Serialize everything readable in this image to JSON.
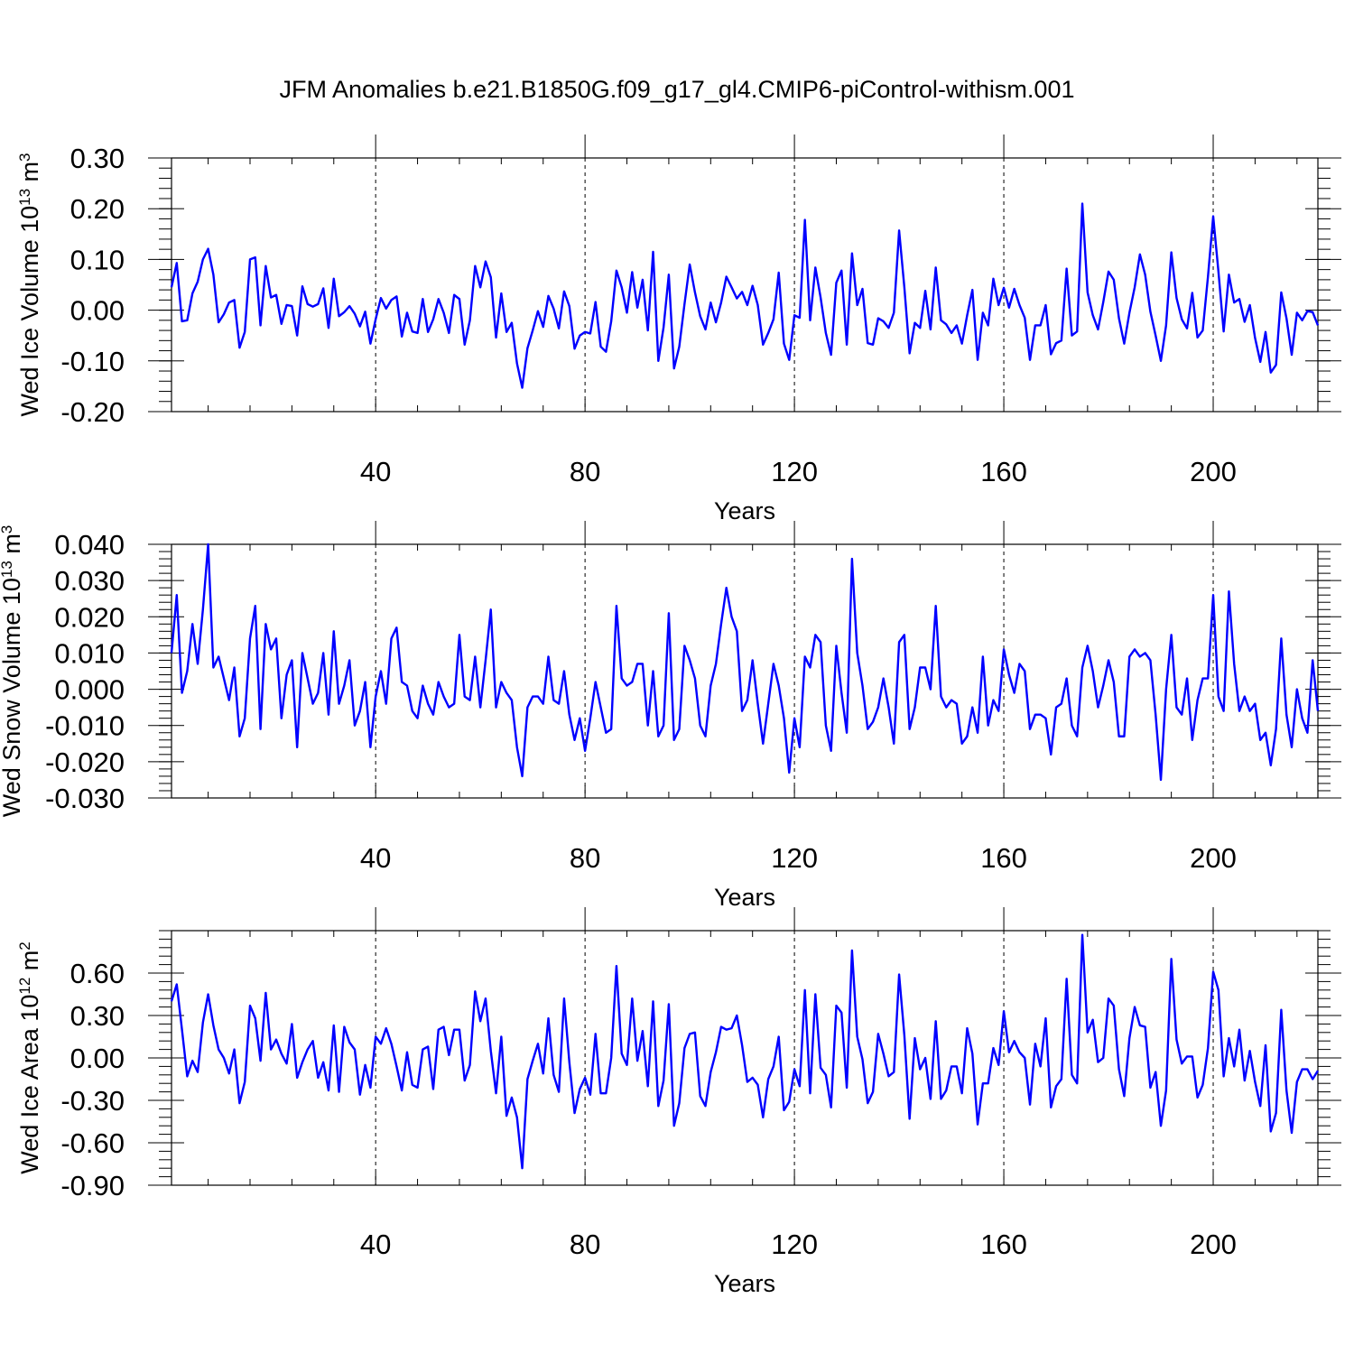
{
  "figure": {
    "title": "JFM Anomalies b.e21.B1850G.f09_g17_gl4.CMIP6-piControl-withism.001",
    "line_color": "#0000ff"
  },
  "chart_data": [
    {
      "type": "line",
      "xlabel": "Years",
      "ylabel": "Wed Ice Volume 10",
      "ylabel_sup": "13",
      "ylabel_unit": " m",
      "ylabel_unit_sup": "3",
      "xlim": [
        1,
        220
      ],
      "ylim": [
        -0.2,
        0.3
      ],
      "x_ticks": [
        40,
        80,
        120,
        160,
        200
      ],
      "x_tick_labels": [
        "40",
        "80",
        "120",
        "160",
        "200"
      ],
      "y_ticks": [
        -0.2,
        -0.1,
        0.0,
        0.1,
        0.2,
        0.3
      ],
      "y_tick_labels": [
        "-0.20",
        "-0.10",
        "0.00",
        "0.10",
        "0.20",
        "0.30"
      ],
      "y_minor_step": 0.02,
      "x_minor_step": 8,
      "vertical_gridlines": "dashed at major x ticks",
      "series": [
        {
          "x_start": 1,
          "values": [
            0.045,
            0.093,
            -0.022,
            -0.02,
            0.033,
            0.056,
            0.1,
            0.121,
            0.07,
            -0.024,
            -0.008,
            0.015,
            0.02,
            -0.074,
            -0.043,
            0.1,
            0.104,
            -0.03,
            0.087,
            0.025,
            0.03,
            -0.027,
            0.01,
            0.008,
            -0.05,
            0.047,
            0.012,
            0.007,
            0.012,
            0.043,
            -0.035,
            0.062,
            -0.012,
            -0.004,
            0.008,
            -0.007,
            -0.032,
            -0.003,
            -0.066,
            -0.018,
            0.024,
            0.003,
            0.02,
            0.027,
            -0.052,
            -0.005,
            -0.042,
            -0.045,
            0.022,
            -0.043,
            -0.018,
            0.022,
            -0.005,
            -0.045,
            0.03,
            0.022,
            -0.068,
            -0.02,
            0.087,
            0.045,
            0.096,
            0.065,
            -0.054,
            0.033,
            -0.043,
            -0.025,
            -0.105,
            -0.153,
            -0.075,
            -0.04,
            -0.002,
            -0.033,
            0.028,
            0.003,
            -0.036,
            0.037,
            0.008,
            -0.076,
            -0.05,
            -0.043,
            -0.046,
            0.016,
            -0.072,
            -0.082,
            -0.022,
            0.078,
            0.045,
            -0.005,
            0.075,
            0.005,
            0.06,
            -0.04,
            0.115,
            -0.1,
            -0.034,
            0.07,
            -0.115,
            -0.072,
            0.012,
            0.09,
            0.035,
            -0.012,
            -0.038,
            0.015,
            -0.024,
            0.015,
            0.066,
            0.045,
            0.023,
            0.036,
            0.01,
            0.048,
            0.01,
            -0.068,
            -0.045,
            -0.018,
            0.074,
            -0.066,
            -0.098,
            -0.01,
            -0.015,
            0.178,
            -0.02,
            0.084,
            0.025,
            -0.045,
            -0.088,
            0.054,
            0.078,
            -0.068,
            0.112,
            0.01,
            0.042,
            -0.065,
            -0.068,
            -0.016,
            -0.022,
            -0.035,
            -0.005,
            0.157,
            0.045,
            -0.085,
            -0.025,
            -0.035,
            0.038,
            -0.038,
            0.084,
            -0.02,
            -0.028,
            -0.045,
            -0.03,
            -0.066,
            -0.01,
            0.04,
            -0.098,
            -0.005,
            -0.03,
            0.062,
            0.01,
            0.044,
            0.005,
            0.042,
            0.01,
            -0.015,
            -0.098,
            -0.03,
            -0.03,
            0.01,
            -0.087,
            -0.065,
            -0.06,
            0.082,
            -0.05,
            -0.042,
            0.21,
            0.035,
            -0.01,
            -0.038,
            0.016,
            0.076,
            0.06,
            -0.016,
            -0.066,
            -0.005,
            0.045,
            0.11,
            0.07,
            -0.003,
            -0.05,
            -0.1,
            -0.03,
            0.114,
            0.024,
            -0.018,
            -0.036,
            0.034,
            -0.054,
            -0.04,
            0.066,
            0.185,
            0.076,
            -0.042,
            0.07,
            0.015,
            0.022,
            -0.023,
            0.01,
            -0.055,
            -0.102,
            -0.043,
            -0.123,
            -0.108,
            0.035,
            -0.016,
            -0.088,
            -0.005,
            -0.02,
            -0.002,
            -0.004,
            -0.03
          ]
        }
      ]
    },
    {
      "type": "line",
      "xlabel": "Years",
      "ylabel": "Wed Snow Volume 10",
      "ylabel_sup": "13",
      "ylabel_unit": " m",
      "ylabel_unit_sup": "3",
      "xlim": [
        1,
        220
      ],
      "ylim": [
        -0.03,
        0.04
      ],
      "x_ticks": [
        40,
        80,
        120,
        160,
        200
      ],
      "x_tick_labels": [
        "40",
        "80",
        "120",
        "160",
        "200"
      ],
      "y_ticks": [
        -0.03,
        -0.02,
        -0.01,
        0.0,
        0.01,
        0.02,
        0.03,
        0.04
      ],
      "y_tick_labels": [
        "-0.030",
        "-0.020",
        "-0.010",
        "0.000",
        "0.010",
        "0.020",
        "0.030",
        "0.040"
      ],
      "y_minor_step": 0.002,
      "x_minor_step": 8,
      "vertical_gridlines": "dashed at major x ticks",
      "series": [
        {
          "x_start": 1,
          "values": [
            0.01,
            0.026,
            -0.001,
            0.005,
            0.018,
            0.007,
            0.022,
            0.04,
            0.006,
            0.009,
            0.003,
            -0.003,
            0.006,
            -0.013,
            -0.008,
            0.014,
            0.023,
            -0.011,
            0.018,
            0.011,
            0.014,
            -0.008,
            0.004,
            0.008,
            -0.016,
            0.01,
            0.003,
            -0.004,
            -0.001,
            0.01,
            -0.007,
            0.016,
            -0.004,
            0.001,
            0.008,
            -0.01,
            -0.006,
            0.002,
            -0.016,
            -0.002,
            0.005,
            -0.004,
            0.014,
            0.017,
            0.002,
            0.001,
            -0.006,
            -0.008,
            0.001,
            -0.004,
            -0.007,
            0.002,
            -0.002,
            -0.005,
            -0.004,
            0.015,
            -0.002,
            -0.003,
            0.009,
            -0.005,
            0.008,
            0.022,
            -0.005,
            0.002,
            -0.001,
            -0.003,
            -0.016,
            -0.024,
            -0.005,
            -0.002,
            -0.002,
            -0.004,
            0.009,
            -0.003,
            -0.004,
            0.005,
            -0.007,
            -0.014,
            -0.008,
            -0.017,
            -0.008,
            0.002,
            -0.005,
            -0.012,
            -0.011,
            0.023,
            0.003,
            0.001,
            0.002,
            0.007,
            0.007,
            -0.01,
            0.005,
            -0.013,
            -0.01,
            0.021,
            -0.014,
            -0.011,
            0.012,
            0.008,
            0.003,
            -0.01,
            -0.013,
            0.001,
            0.007,
            0.018,
            0.028,
            0.02,
            0.016,
            -0.006,
            -0.003,
            0.008,
            -0.004,
            -0.015,
            -0.004,
            0.007,
            0.001,
            -0.008,
            -0.023,
            -0.008,
            -0.016,
            0.009,
            0.006,
            0.015,
            0.013,
            -0.01,
            -0.017,
            0.012,
            -0.001,
            -0.012,
            0.036,
            0.01,
            0.001,
            -0.011,
            -0.009,
            -0.005,
            0.003,
            -0.005,
            -0.015,
            0.013,
            0.015,
            -0.011,
            -0.005,
            0.006,
            0.006,
            0.0,
            0.023,
            -0.002,
            -0.005,
            -0.003,
            -0.004,
            -0.015,
            -0.013,
            -0.005,
            -0.012,
            0.009,
            -0.01,
            -0.003,
            -0.006,
            0.011,
            0.004,
            -0.001,
            0.007,
            0.005,
            -0.011,
            -0.007,
            -0.007,
            -0.008,
            -0.018,
            -0.005,
            -0.004,
            0.003,
            -0.01,
            -0.013,
            0.006,
            0.012,
            0.005,
            -0.005,
            0.001,
            0.008,
            0.002,
            -0.013,
            -0.013,
            0.009,
            0.011,
            0.009,
            0.01,
            0.008,
            -0.007,
            -0.025,
            0.0,
            0.015,
            -0.005,
            -0.007,
            0.003,
            -0.014,
            -0.003,
            0.003,
            0.003,
            0.026,
            -0.002,
            -0.006,
            0.027,
            0.007,
            -0.006,
            -0.002,
            -0.006,
            -0.004,
            -0.014,
            -0.012,
            -0.021,
            -0.011,
            0.014,
            -0.007,
            -0.016,
            0.0,
            -0.008,
            -0.012,
            0.008,
            -0.006
          ]
        }
      ]
    },
    {
      "type": "line",
      "xlabel": "Years",
      "ylabel": "Wed Ice Area 10",
      "ylabel_sup": "12",
      "ylabel_unit": " m",
      "ylabel_unit_sup": "2",
      "xlim": [
        1,
        220
      ],
      "ylim": [
        -0.9,
        0.9
      ],
      "x_ticks": [
        40,
        80,
        120,
        160,
        200
      ],
      "x_tick_labels": [
        "40",
        "80",
        "120",
        "160",
        "200"
      ],
      "y_ticks": [
        -0.9,
        -0.6,
        -0.3,
        0.0,
        0.3,
        0.6
      ],
      "y_tick_labels": [
        "-0.90",
        "-0.60",
        "-0.30",
        "0.00",
        "0.30",
        "0.60"
      ],
      "y_minor_step": 0.06,
      "x_minor_step": 8,
      "vertical_gridlines": "dashed at major x ticks",
      "series": [
        {
          "x_start": 1,
          "values": [
            0.4,
            0.52,
            0.2,
            -0.13,
            -0.02,
            -0.1,
            0.25,
            0.45,
            0.23,
            0.06,
            0.0,
            -0.11,
            0.06,
            -0.32,
            -0.17,
            0.37,
            0.28,
            -0.02,
            0.46,
            0.06,
            0.13,
            0.03,
            -0.04,
            0.24,
            -0.14,
            -0.03,
            0.06,
            0.12,
            -0.14,
            -0.03,
            -0.23,
            0.23,
            -0.24,
            0.22,
            0.11,
            0.06,
            -0.26,
            -0.05,
            -0.21,
            0.15,
            0.1,
            0.21,
            0.1,
            -0.06,
            -0.23,
            0.04,
            -0.19,
            -0.21,
            0.06,
            0.08,
            -0.22,
            0.2,
            0.22,
            0.02,
            0.2,
            0.2,
            -0.16,
            -0.05,
            0.47,
            0.26,
            0.42,
            0.05,
            -0.25,
            0.15,
            -0.41,
            -0.28,
            -0.42,
            -0.78,
            -0.15,
            -0.02,
            0.1,
            -0.11,
            0.28,
            -0.12,
            -0.24,
            0.42,
            -0.03,
            -0.39,
            -0.22,
            -0.14,
            -0.26,
            0.17,
            -0.25,
            -0.25,
            0.0,
            0.65,
            0.03,
            -0.05,
            0.42,
            -0.02,
            0.19,
            -0.2,
            0.4,
            -0.34,
            -0.16,
            0.38,
            -0.48,
            -0.32,
            0.07,
            0.17,
            0.18,
            -0.27,
            -0.34,
            -0.1,
            0.04,
            0.22,
            0.2,
            0.21,
            0.3,
            0.09,
            -0.17,
            -0.14,
            -0.19,
            -0.42,
            -0.15,
            -0.06,
            0.15,
            -0.37,
            -0.31,
            -0.08,
            -0.2,
            0.48,
            -0.25,
            0.45,
            -0.07,
            -0.12,
            -0.35,
            0.37,
            0.32,
            -0.21,
            0.76,
            0.15,
            -0.01,
            -0.32,
            -0.24,
            0.17,
            0.03,
            -0.13,
            -0.1,
            0.59,
            0.16,
            -0.43,
            0.14,
            -0.08,
            0.0,
            -0.29,
            0.26,
            -0.29,
            -0.23,
            -0.06,
            -0.06,
            -0.25,
            0.21,
            0.03,
            -0.47,
            -0.18,
            -0.18,
            0.07,
            -0.05,
            0.33,
            0.04,
            0.12,
            0.04,
            0.0,
            -0.33,
            0.1,
            -0.06,
            0.28,
            -0.35,
            -0.2,
            -0.15,
            0.56,
            -0.12,
            -0.18,
            0.87,
            0.18,
            0.27,
            -0.03,
            0.0,
            0.42,
            0.37,
            -0.08,
            -0.27,
            0.14,
            0.36,
            0.23,
            0.22,
            -0.21,
            -0.1,
            -0.48,
            -0.23,
            0.7,
            0.13,
            -0.04,
            0.01,
            0.01,
            -0.28,
            -0.19,
            0.07,
            0.61,
            0.48,
            -0.13,
            0.14,
            -0.06,
            0.2,
            -0.16,
            0.05,
            -0.17,
            -0.34,
            0.09,
            -0.52,
            -0.39,
            0.34,
            -0.23,
            -0.53,
            -0.17,
            -0.08,
            -0.08,
            -0.15,
            -0.09
          ]
        }
      ]
    }
  ]
}
